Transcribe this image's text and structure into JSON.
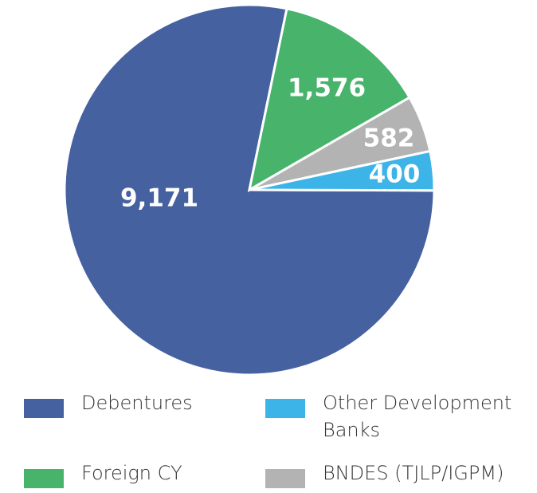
{
  "chart_data": {
    "type": "pie",
    "categories": [
      "Debentures",
      "Foreign CY",
      "BNDES (TJLP/IGPM)",
      "Other Development Banks"
    ],
    "values": [
      9171,
      1576,
      582,
      400
    ],
    "value_labels": [
      "9,171",
      "1,576",
      "582",
      "400"
    ],
    "colors": [
      "#4561a0",
      "#47b36b",
      "#b3b3b3",
      "#3db4e8"
    ]
  }
}
